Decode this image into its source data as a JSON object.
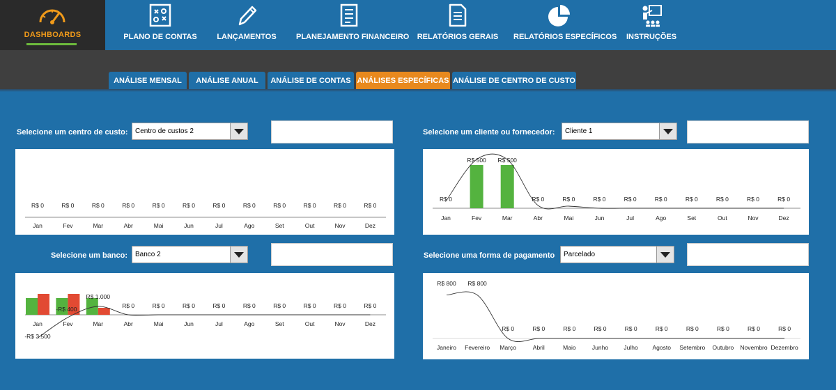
{
  "nav": {
    "dashboard_label": "DASHBOARDS",
    "items": [
      {
        "label": "PLANO DE CONTAS",
        "icon": "strategy-board-icon"
      },
      {
        "label": "LANÇAMENTOS",
        "icon": "pencil-icon"
      },
      {
        "label": "PLANEJAMENTO FINANCEIRO",
        "icon": "checklist-icon"
      },
      {
        "label": "RELATÓRIOS GERAIS",
        "icon": "document-icon"
      },
      {
        "label": "RELATÓRIOS ESPECÍFICOS",
        "icon": "pie-chart-icon"
      },
      {
        "label": "INSTRUÇÕES",
        "icon": "presentation-icon"
      }
    ]
  },
  "tabs": [
    {
      "label": "ANÁLISE MENSAL",
      "active": false
    },
    {
      "label": "ANÁLISE ANUAL",
      "active": false
    },
    {
      "label": "ANÁLISE DE CONTAS",
      "active": false
    },
    {
      "label": "ANÁLISES ESPECÍFICAS",
      "active": true
    },
    {
      "label": "ANÁLISE DE CENTRO DE CUSTO",
      "active": false
    }
  ],
  "colors": {
    "green": "#54b33f",
    "red": "#e24a33",
    "accent": "#e8891e",
    "background": "#1f6fa8"
  },
  "selectors": {
    "cost_center": {
      "label": "Selecione um centro de custo:",
      "value": "Centro de custos 2"
    },
    "client": {
      "label": "Selecione um cliente ou fornecedor:",
      "value": "Cliente 1"
    },
    "bank": {
      "label": "Selecione um banco:",
      "value": "Banco 2"
    },
    "payment": {
      "label": "Selecione uma forma de pagamento",
      "value": "Parcelado"
    }
  },
  "chart_data": [
    {
      "id": "cost_center",
      "type": "bar",
      "categories": [
        "Jan",
        "Fev",
        "Mar",
        "Abr",
        "Mai",
        "Jun",
        "Jul",
        "Ago",
        "Set",
        "Out",
        "Nov",
        "Dez"
      ],
      "series": [
        {
          "values": [
            0,
            0,
            0,
            0,
            0,
            0,
            0,
            0,
            0,
            0,
            0,
            0
          ],
          "color": "#54b33f"
        }
      ],
      "labels": [
        "R$ 0",
        "R$ 0",
        "R$ 0",
        "R$ 0",
        "R$ 0",
        "R$ 0",
        "R$ 0",
        "R$ 0",
        "R$ 0",
        "R$ 0",
        "R$ 0",
        "R$ 0"
      ],
      "trendline": false
    },
    {
      "id": "client",
      "type": "bar",
      "categories": [
        "Jan",
        "Fev",
        "Mar",
        "Abr",
        "Mai",
        "Jun",
        "Jul",
        "Ago",
        "Set",
        "Out",
        "Nov",
        "Dez"
      ],
      "series": [
        {
          "values": [
            0,
            500,
            500,
            0,
            0,
            0,
            0,
            0,
            0,
            0,
            0,
            0
          ],
          "color": "#54b33f"
        }
      ],
      "labels": [
        "R$ 0",
        "R$ 500",
        "R$ 500",
        "R$ 0",
        "R$ 0",
        "R$ 0",
        "R$ 0",
        "R$ 0",
        "R$ 0",
        "R$ 0",
        "R$ 0",
        "R$ 0"
      ],
      "trendline": true
    },
    {
      "id": "bank",
      "type": "bar",
      "categories": [
        "Jan",
        "Fev",
        "Mar",
        "Abr",
        "Mai",
        "Jun",
        "Jul",
        "Ago",
        "Set",
        "Out",
        "Nov",
        "Dez"
      ],
      "series": [
        {
          "values": [
            600,
            600,
            600,
            0,
            0,
            0,
            0,
            0,
            0,
            0,
            0,
            0
          ],
          "color": "#54b33f"
        },
        {
          "values": [
            750,
            750,
            250,
            0,
            0,
            0,
            0,
            0,
            0,
            0,
            0,
            0
          ],
          "color": "#e24a33"
        }
      ],
      "line_values": [
        -3500,
        -400,
        1000,
        0,
        0,
        0,
        0,
        0,
        0,
        0,
        0,
        0
      ],
      "labels": [
        "-R$ 3.500",
        "-R$ 400",
        "R$ 1.000",
        "R$ 0",
        "R$ 0",
        "R$ 0",
        "R$ 0",
        "R$ 0",
        "R$ 0",
        "R$ 0",
        "R$ 0",
        "R$ 0"
      ],
      "trendline": true
    },
    {
      "id": "payment",
      "type": "line",
      "categories": [
        "Janeiro",
        "Fevereiro",
        "Março",
        "Abril",
        "Maio",
        "Junho",
        "Julho",
        "Agosto",
        "Setembro",
        "Outubro",
        "Novembro",
        "Dezembro"
      ],
      "series": [
        {
          "values": [
            800,
            800,
            0,
            0,
            0,
            0,
            0,
            0,
            0,
            0,
            0,
            0
          ],
          "color": "#333333"
        }
      ],
      "labels": [
        "R$ 800",
        "R$ 800",
        "R$ 0",
        "R$ 0",
        "R$ 0",
        "R$ 0",
        "R$ 0",
        "R$ 0",
        "R$ 0",
        "R$ 0",
        "R$ 0",
        "R$ 0"
      ],
      "trendline": true
    }
  ]
}
